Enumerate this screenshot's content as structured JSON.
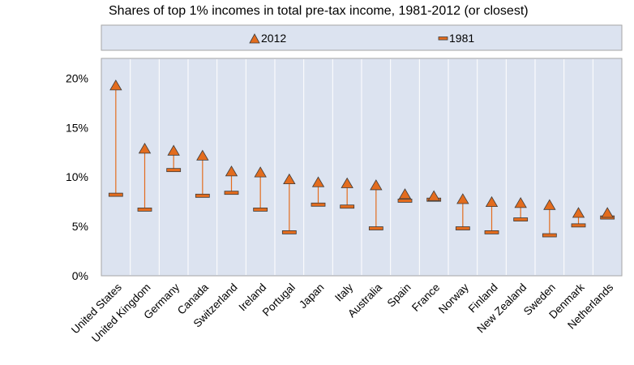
{
  "chart_data": {
    "type": "scatter",
    "title": "Shares of top 1% incomes in total pre-tax income, 1981-2012 (or closest)",
    "xlabel": "",
    "ylabel": "",
    "ylim": [
      0,
      22
    ],
    "yticks": [
      0,
      5,
      10,
      15,
      20
    ],
    "ytick_labels": [
      "0%",
      "5%",
      "10%",
      "15%",
      "20%"
    ],
    "grid": "vertical",
    "legend_position": "top-center",
    "categories": [
      "United States",
      "United Kingdom",
      "Germany",
      "Canada",
      "Switzerland",
      "Ireland",
      "Portugal",
      "Japan",
      "Italy",
      "Australia",
      "Spain",
      "France",
      "Norway",
      "Finland",
      "New Zealand",
      "Sweden",
      "Denmark",
      "Netherlands"
    ],
    "series": [
      {
        "name": "2012",
        "marker": "triangle",
        "color": "#E36C1E",
        "values": [
          19.3,
          12.9,
          12.7,
          12.2,
          10.6,
          10.5,
          9.8,
          9.5,
          9.4,
          9.2,
          8.3,
          8.1,
          7.8,
          7.5,
          7.4,
          7.2,
          6.4,
          6.4
        ]
      },
      {
        "name": "1981",
        "marker": "dash",
        "color": "#E36C1E",
        "values": [
          8.2,
          6.7,
          10.7,
          8.1,
          8.4,
          6.7,
          4.4,
          7.2,
          7.0,
          4.8,
          7.6,
          7.7,
          4.8,
          4.4,
          5.7,
          4.1,
          5.1,
          5.9
        ]
      }
    ]
  },
  "colors": {
    "plot_background": "#DCE3F0",
    "plot_border": "#A6A6A6",
    "gridline": "#FFFFFF",
    "marker": "#E36C1E",
    "marker_stroke": "#3B3B3B"
  }
}
